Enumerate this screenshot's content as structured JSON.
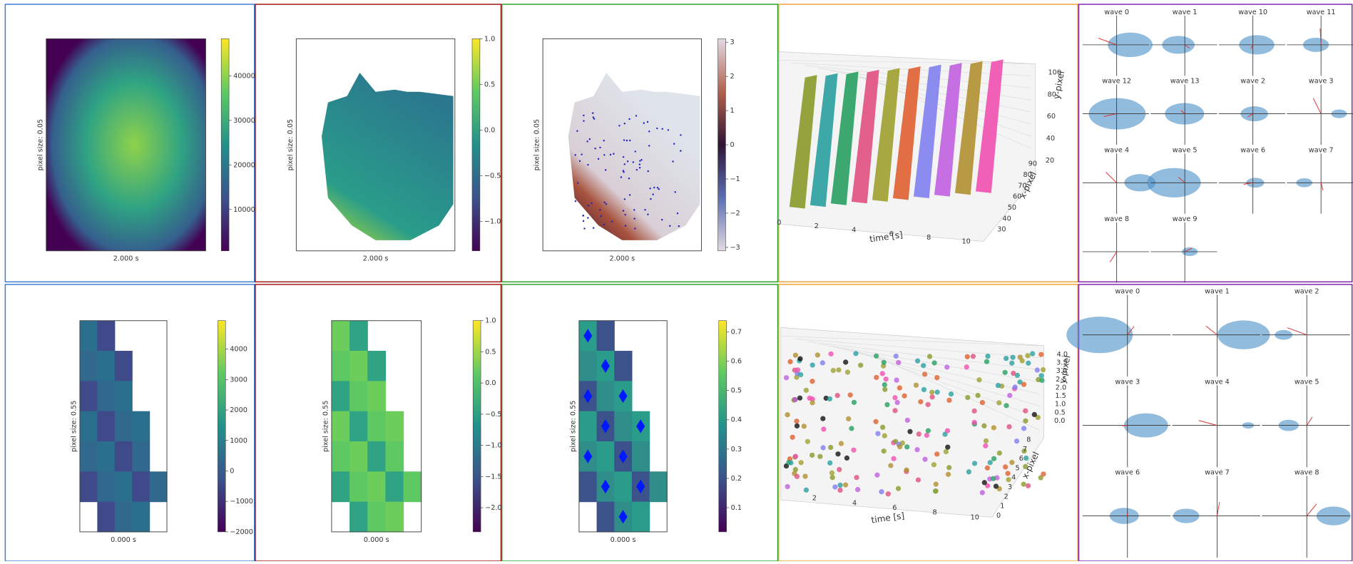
{
  "panels": {
    "top": [
      {
        "ylabel": "pixel size: 0.05",
        "xlabel": "2.000 s",
        "colorbar_ticks": [
          "40000",
          "30000",
          "20000",
          "10000"
        ]
      },
      {
        "ylabel": "pixel size: 0.05",
        "xlabel": "2.000 s",
        "colorbar_ticks": [
          "1.0",
          "0.5",
          "0.0",
          "−0.5",
          "−1.0"
        ]
      },
      {
        "ylabel": "pixel size: 0.05",
        "xlabel": "2.000 s",
        "colorbar_ticks": [
          "3",
          "2",
          "1",
          "0",
          "−1",
          "−2",
          "−3"
        ]
      },
      {
        "xlabel": "time [s]",
        "ylabel": "y-pixel",
        "zlabel": "x-pixel",
        "time_ticks": [
          "0",
          "2",
          "4",
          "6",
          "8",
          "10"
        ],
        "y_ticks": [
          "100",
          "80",
          "60",
          "40",
          "20"
        ],
        "x_ticks": [
          "90",
          "80",
          "70",
          "60",
          "50",
          "40",
          "30"
        ]
      },
      {
        "labels": [
          "wave 0",
          "wave 1",
          "wave 10",
          "wave 11",
          "wave 12",
          "wave 13",
          "wave 2",
          "wave 3",
          "wave 4",
          "wave 5",
          "wave 6",
          "wave 7",
          "wave 8",
          "wave 9"
        ]
      }
    ],
    "bottom": [
      {
        "ylabel": "pixel size: 0.55",
        "xlabel": "0.000 s",
        "colorbar_ticks": [
          "4000",
          "3000",
          "2000",
          "1000",
          "0",
          "−1000",
          "−2000"
        ]
      },
      {
        "ylabel": "pixel size: 0.55",
        "xlabel": "0.000 s",
        "colorbar_ticks": [
          "1.0",
          "0.5",
          "0.0",
          "−0.5",
          "−1.0",
          "−1.5",
          "−2.0"
        ]
      },
      {
        "ylabel": "pixel size: 0.55",
        "xlabel": "0.000 s",
        "colorbar_ticks": [
          "0.7",
          "0.6",
          "0.5",
          "0.4",
          "0.3",
          "0.2",
          "0.1"
        ]
      },
      {
        "xlabel": "time [s]",
        "ylabel": "y-pixel",
        "zlabel": "x-pixel",
        "time_ticks": [
          "2",
          "4",
          "6",
          "8",
          "10"
        ],
        "y_ticks": [
          "4.0",
          "3.5",
          "3.0",
          "2.5",
          "2.0",
          "1.5",
          "1.0",
          "0.5",
          "0.0"
        ],
        "x_ticks": [
          "8",
          "7",
          "6",
          "5",
          "4",
          "3",
          "2",
          "1",
          "0"
        ]
      },
      {
        "labels": [
          "wave 0",
          "wave 1",
          "wave 2",
          "wave 3",
          "wave 4",
          "wave 5",
          "wave 6",
          "wave 7",
          "wave 8"
        ]
      }
    ]
  }
}
